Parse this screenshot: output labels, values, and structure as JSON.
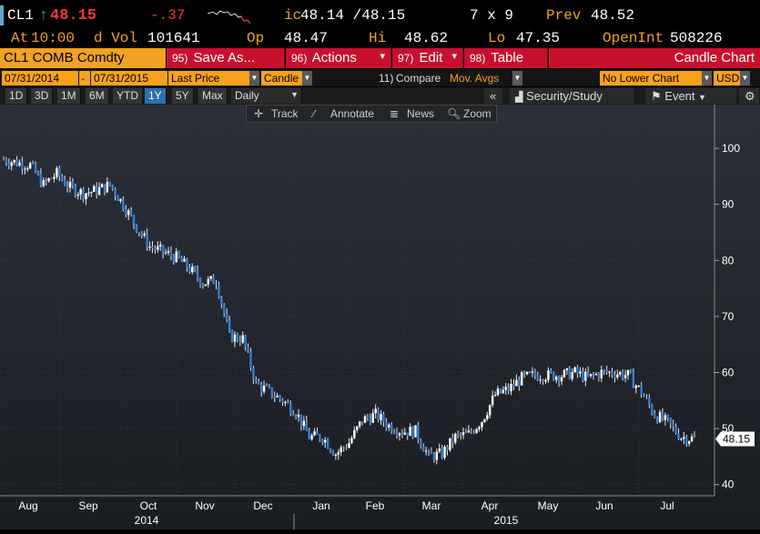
{
  "quote": {
    "ticker": "CL1",
    "arrow": "↑",
    "last": "48.15",
    "change": "-.37",
    "ic_label": "ic",
    "bid_ask": "48.14 /48.15",
    "size": "7 x 9",
    "prev_label": "Prev",
    "prev": "48.52",
    "at_label": "At",
    "time": "10:00",
    "dvol_label": "d Vol",
    "dvol": "101641",
    "op_label": "Op",
    "open": "48.47",
    "hi_label": "Hi",
    "high": "48.62",
    "lo_label": "Lo",
    "low": "47.35",
    "oi_label": "OpenInt",
    "open_int": "508226"
  },
  "command_bar": {
    "security": "CL1 COMB Comdty",
    "save_num": "95)",
    "save_label": "Save As...",
    "actions_num": "96)",
    "actions_label": "Actions",
    "edit_num": "97)",
    "edit_label": "Edit",
    "table_num": "98)",
    "table_label": "Table",
    "title": "Candle Chart"
  },
  "settings": {
    "start_date": "07/31/2014",
    "dash": "-",
    "end_date": "07/31/2015",
    "field": "Last Price",
    "style": "Candle",
    "compare_num": "11)",
    "compare_label": "Compare",
    "compare_value": "Mov. Avgs",
    "lower_chart": "No Lower Chart",
    "currency": "USD"
  },
  "range_tabs": [
    "1D",
    "3D",
    "1M",
    "6M",
    "YTD",
    "1Y",
    "5Y",
    "Max"
  ],
  "active_range": "1Y",
  "period": "Daily",
  "collapse_label": "«",
  "security_study_label": "Security/Study",
  "event_label": "Event",
  "chart_toolbar": {
    "track": "Track",
    "annotate": "Annotate",
    "news": "News",
    "zoom": "Zoom"
  },
  "chart_data": {
    "type": "candlestick",
    "ylim": [
      38,
      107
    ],
    "y_ticks": [
      40,
      50,
      60,
      70,
      80,
      90,
      100
    ],
    "last_price_label": "48.15",
    "last_price": 48.15,
    "x_month_labels": [
      "Aug",
      "Sep",
      "Oct",
      "Nov",
      "Dec",
      "Jan",
      "Feb",
      "Mar",
      "Apr",
      "May",
      "Jun",
      "Jul"
    ],
    "x_year_labels": [
      "2014",
      "2015"
    ],
    "weekly_closes": [
      {
        "week": "2014-08-01",
        "close": 98.0
      },
      {
        "week": "2014-08-08",
        "close": 97.5
      },
      {
        "week": "2014-08-15",
        "close": 97.0
      },
      {
        "week": "2014-08-22",
        "close": 93.5
      },
      {
        "week": "2014-08-29",
        "close": 95.5
      },
      {
        "week": "2014-09-05",
        "close": 93.0
      },
      {
        "week": "2014-09-12",
        "close": 92.0
      },
      {
        "week": "2014-09-19",
        "close": 92.5
      },
      {
        "week": "2014-09-26",
        "close": 93.5
      },
      {
        "week": "2014-10-03",
        "close": 90.0
      },
      {
        "week": "2014-10-10",
        "close": 86.0
      },
      {
        "week": "2014-10-17",
        "close": 82.5
      },
      {
        "week": "2014-10-24",
        "close": 81.5
      },
      {
        "week": "2014-10-31",
        "close": 80.5
      },
      {
        "week": "2014-11-07",
        "close": 78.5
      },
      {
        "week": "2014-11-14",
        "close": 76.0
      },
      {
        "week": "2014-11-21",
        "close": 76.5
      },
      {
        "week": "2014-11-28",
        "close": 66.5
      },
      {
        "week": "2014-12-05",
        "close": 66.0
      },
      {
        "week": "2014-12-12",
        "close": 58.0
      },
      {
        "week": "2014-12-19",
        "close": 56.5
      },
      {
        "week": "2014-12-26",
        "close": 55.0
      },
      {
        "week": "2015-01-02",
        "close": 53.0
      },
      {
        "week": "2015-01-09",
        "close": 48.5
      },
      {
        "week": "2015-01-16",
        "close": 48.5
      },
      {
        "week": "2015-01-23",
        "close": 45.5
      },
      {
        "week": "2015-01-30",
        "close": 47.5
      },
      {
        "week": "2015-02-06",
        "close": 51.5
      },
      {
        "week": "2015-02-13",
        "close": 52.5
      },
      {
        "week": "2015-02-20",
        "close": 50.5
      },
      {
        "week": "2015-02-27",
        "close": 49.5
      },
      {
        "week": "2015-03-06",
        "close": 49.5
      },
      {
        "week": "2015-03-13",
        "close": 45.0
      },
      {
        "week": "2015-03-20",
        "close": 45.5
      },
      {
        "week": "2015-03-27",
        "close": 48.5
      },
      {
        "week": "2015-04-03",
        "close": 49.0
      },
      {
        "week": "2015-04-10",
        "close": 51.5
      },
      {
        "week": "2015-04-17",
        "close": 56.0
      },
      {
        "week": "2015-04-24",
        "close": 57.0
      },
      {
        "week": "2015-05-01",
        "close": 59.0
      },
      {
        "week": "2015-05-08",
        "close": 59.5
      },
      {
        "week": "2015-05-15",
        "close": 59.5
      },
      {
        "week": "2015-05-22",
        "close": 59.5
      },
      {
        "week": "2015-05-29",
        "close": 60.0
      },
      {
        "week": "2015-06-05",
        "close": 59.0
      },
      {
        "week": "2015-06-12",
        "close": 60.0
      },
      {
        "week": "2015-06-19",
        "close": 60.0
      },
      {
        "week": "2015-06-26",
        "close": 59.5
      },
      {
        "week": "2015-07-03",
        "close": 56.5
      },
      {
        "week": "2015-07-10",
        "close": 52.5
      },
      {
        "week": "2015-07-17",
        "close": 51.0
      },
      {
        "week": "2015-07-24",
        "close": 48.5
      },
      {
        "week": "2015-07-31",
        "close": 48.15
      }
    ]
  }
}
